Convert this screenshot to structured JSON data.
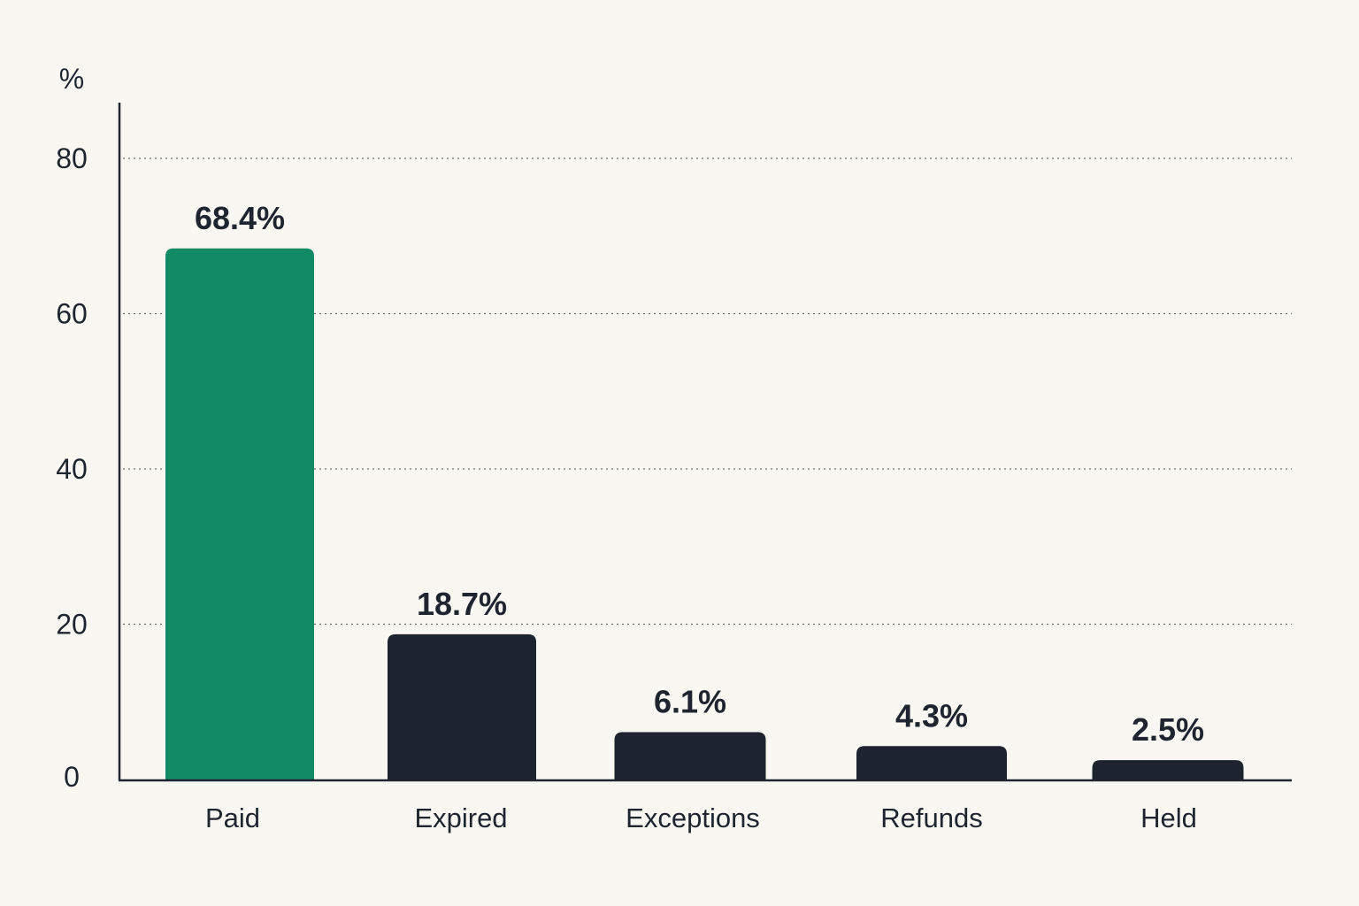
{
  "chart_data": {
    "type": "bar",
    "ylabel": "%",
    "categories": [
      "Paid",
      "Expired",
      "Exceptions",
      "Refunds",
      "Held"
    ],
    "values": [
      68.4,
      18.7,
      6.1,
      4.3,
      2.5
    ],
    "value_labels": [
      "68.4%",
      "18.7%",
      "6.1%",
      "4.3%",
      "2.5%"
    ],
    "yticks": [
      0,
      20,
      40,
      60,
      80
    ],
    "ylim": [
      0,
      88
    ],
    "grid": true,
    "legend": "none",
    "colors": {
      "highlight": "#138a66",
      "default": "#1d2430",
      "axis": "#1e2530",
      "background": "#f9f7f2"
    },
    "highlight_index": 0
  }
}
